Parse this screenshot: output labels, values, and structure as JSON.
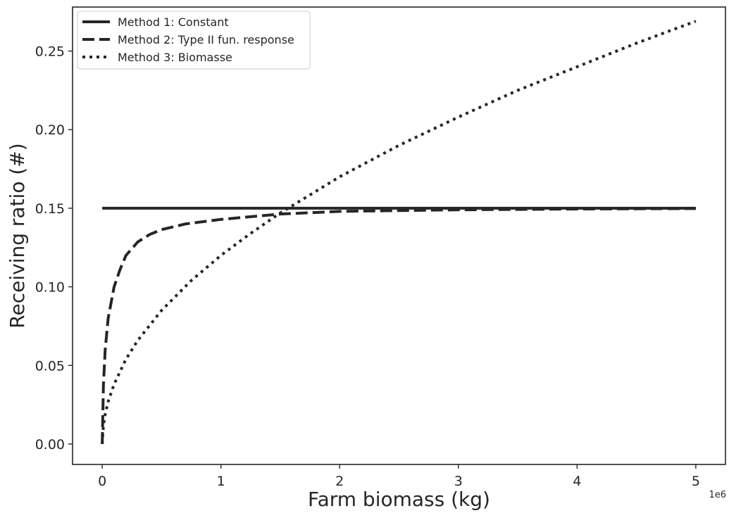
{
  "chart_data": {
    "type": "line",
    "xlabel": "Farm biomass (kg)",
    "ylabel": "Receiving ratio (#)",
    "x_offset_label": "1e6",
    "xlim": [
      -250000,
      5250000
    ],
    "ylim": [
      -0.013,
      0.278
    ],
    "x_ticks": [
      0,
      1000000,
      2000000,
      3000000,
      4000000,
      5000000
    ],
    "x_tick_labels": [
      "0",
      "1",
      "2",
      "3",
      "4",
      "5"
    ],
    "y_ticks": [
      0.0,
      0.05,
      0.1,
      0.15,
      0.2,
      0.25
    ],
    "y_tick_labels": [
      "0.00",
      "0.05",
      "0.10",
      "0.15",
      "0.20",
      "0.25"
    ],
    "grid": false,
    "legend_position": "top-left",
    "line_color": "#262626",
    "series": [
      {
        "name": "Method 1: Constant",
        "style": "solid",
        "x": [
          0,
          5000000
        ],
        "y": [
          0.15,
          0.15
        ]
      },
      {
        "name": "Method 2: Type II fun. response",
        "style": "dashed",
        "x": [
          0,
          10000,
          25000,
          50000,
          75000,
          100000,
          150000,
          200000,
          300000,
          400000,
          500000,
          700000,
          1000000,
          1500000,
          2000000,
          3000000,
          4000000,
          5000000
        ],
        "y": [
          0.0,
          0.0375,
          0.06,
          0.08,
          0.09,
          0.1,
          0.111,
          0.12,
          0.1286,
          0.1333,
          0.1364,
          0.14,
          0.1429,
          0.1463,
          0.148,
          0.149,
          0.1495,
          0.1498
        ]
      },
      {
        "name": "Method 3: Biomasse",
        "style": "dotted",
        "x": [
          0,
          10000,
          25000,
          50000,
          100000,
          200000,
          300000,
          500000,
          750000,
          1000000,
          1250000,
          1500000,
          2000000,
          2500000,
          3000000,
          3500000,
          4000000,
          4500000,
          5000000
        ],
        "y": [
          0.0,
          0.012,
          0.019,
          0.027,
          0.038,
          0.054,
          0.066,
          0.085,
          0.104,
          0.12,
          0.134,
          0.147,
          0.17,
          0.19,
          0.208,
          0.225,
          0.24,
          0.255,
          0.269
        ]
      }
    ]
  }
}
